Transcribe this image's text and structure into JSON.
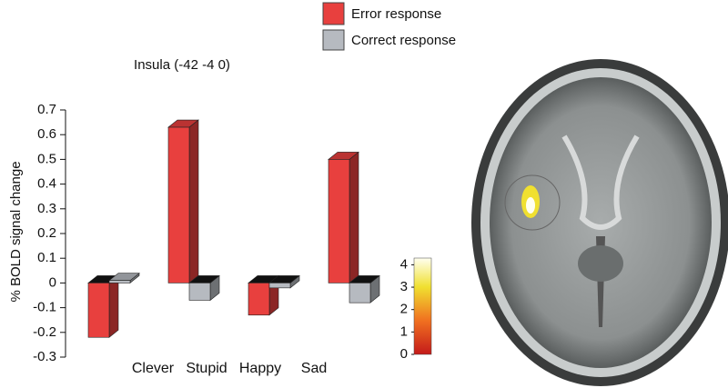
{
  "chart_data": {
    "type": "bar3d",
    "title": "Insula (-42 -4 0)",
    "y_label": "% BOLD signal change",
    "categories": [
      "Clever",
      "Stupid",
      "Happy",
      "Sad"
    ],
    "series": [
      {
        "name": "Error response",
        "color": "#e8403e",
        "values": [
          -0.22,
          0.63,
          -0.13,
          0.5
        ]
      },
      {
        "name": "Correct response",
        "color": "#b6bac0",
        "values": [
          0.01,
          -0.07,
          -0.02,
          -0.08
        ]
      }
    ],
    "ylim": [
      -0.3,
      0.7
    ],
    "yticks": [
      -0.3,
      -0.2,
      -0.1,
      0,
      0.1,
      0.2,
      0.3,
      0.4,
      0.5,
      0.6,
      0.7
    ],
    "colorbar": {
      "lim": [
        0,
        4.3
      ],
      "ticks": [
        0,
        1,
        2,
        3,
        4
      ]
    }
  }
}
